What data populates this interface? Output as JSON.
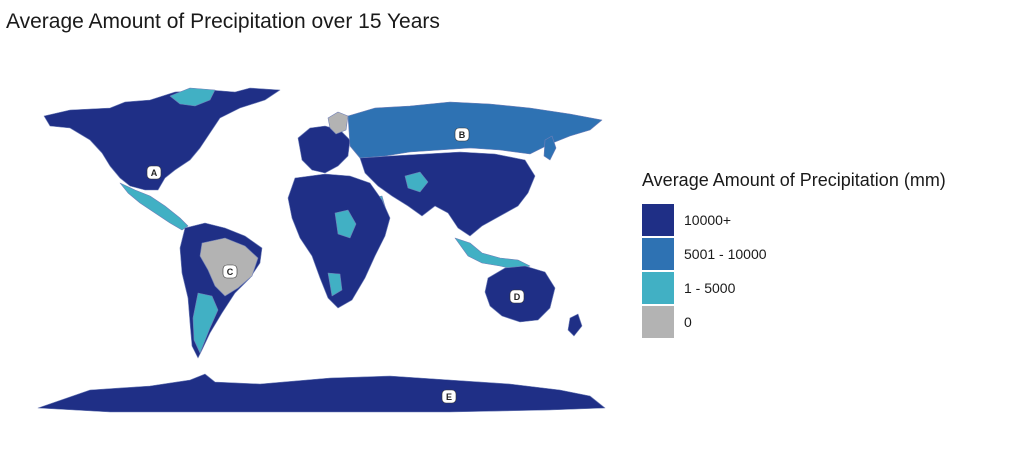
{
  "title": "Average Amount of Precipitation over 15 Years",
  "legend": {
    "title": "Average Amount of Precipitation (mm)",
    "items": [
      {
        "label": "10000+",
        "color": "#1f2f86"
      },
      {
        "label": "5001 - 10000",
        "color": "#2e72b3"
      },
      {
        "label": "1 - 5000",
        "color": "#41b0c4"
      },
      {
        "label": "0",
        "color": "#b3b3b3"
      }
    ]
  },
  "region_labels": [
    "A",
    "B",
    "C",
    "D",
    "E"
  ],
  "colors": {
    "ocean": "#ffffff",
    "border": "#6f7fb8"
  }
}
